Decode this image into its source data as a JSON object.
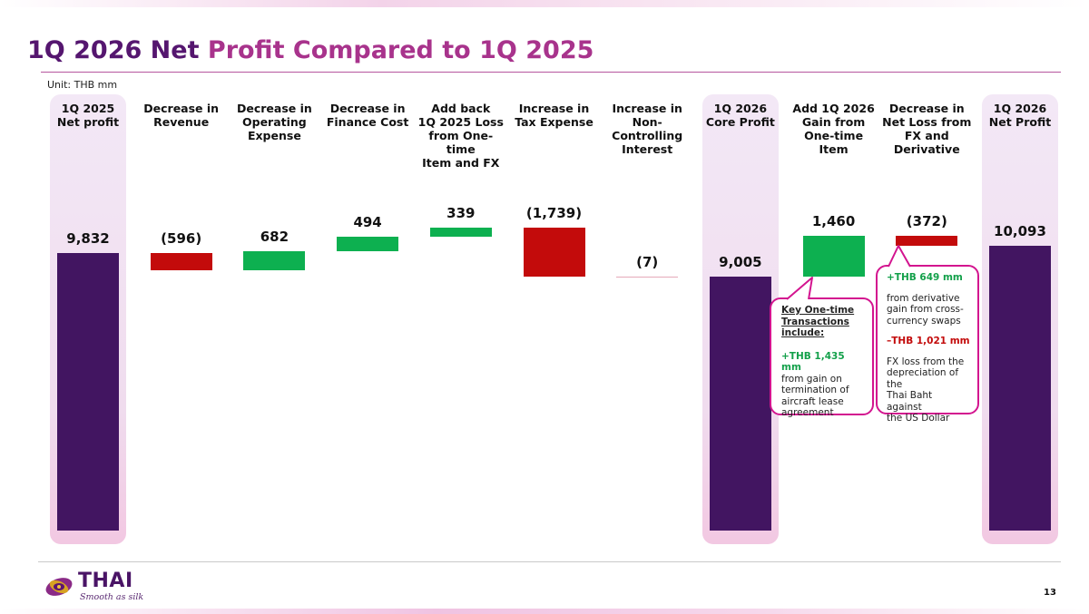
{
  "slide": {
    "title_part1": "1Q 2026 Net ",
    "title_part2": "Profit Compared to 1Q 2025",
    "unit": "Unit: THB mm",
    "page_number": "13",
    "logo_text": "THAI",
    "logo_tagline": "Smooth as silk",
    "colors": {
      "title": "#55166f",
      "total_bar": "#421561",
      "increase_bar": "#0db050",
      "decrease_bar": "#c30b0b",
      "callout_border": "#d3148f"
    }
  },
  "chart_data": {
    "type": "bar",
    "subtype": "waterfall",
    "title": "1Q 2026 Net Profit Compared to 1Q 2025",
    "unit": "Unit: THB mm",
    "steps": [
      {
        "category": [
          "1Q 2025",
          "Net profit"
        ],
        "kind": "total",
        "value": 9832,
        "label": "9,832"
      },
      {
        "category": [
          "Decrease in",
          "Revenue"
        ],
        "kind": "delta",
        "value": -596,
        "label": "(596)"
      },
      {
        "category": [
          "Decrease in",
          "Operating",
          "Expense"
        ],
        "kind": "delta",
        "value": 682,
        "label": "682"
      },
      {
        "category": [
          "Decrease in",
          "Finance Cost"
        ],
        "kind": "delta",
        "value": 494,
        "label": "494"
      },
      {
        "category": [
          "Add back",
          "1Q 2025 Loss",
          "from One-time",
          "Item and FX"
        ],
        "kind": "delta",
        "value": 339,
        "label": "339"
      },
      {
        "category": [
          "Increase in",
          "Tax Expense"
        ],
        "kind": "delta",
        "value": -1739,
        "label": "(1,739)"
      },
      {
        "category": [
          "Increase in",
          "Non-",
          "Controlling",
          "Interest"
        ],
        "kind": "delta",
        "value": -7,
        "label": "(7)"
      },
      {
        "category": [
          "1Q 2026",
          "Core Profit"
        ],
        "kind": "total",
        "value": 9005,
        "label": "9,005"
      },
      {
        "category": [
          "Add 1Q 2026",
          "Gain from",
          "One-time Item"
        ],
        "kind": "delta",
        "value": 1460,
        "label": "1,460"
      },
      {
        "category": [
          "Decrease in",
          "Net Loss from",
          "FX and",
          "Derivative"
        ],
        "kind": "delta",
        "value": -372,
        "label": "(372)"
      },
      {
        "category": [
          "1Q 2026",
          "Net Profit"
        ],
        "kind": "total",
        "value": 10093,
        "label": "10,093"
      }
    ],
    "grid": false,
    "legend": "none"
  },
  "callouts": {
    "one_time": {
      "heading_lines": [
        "Key One-time",
        "Transactions",
        "include:"
      ],
      "amount": "+THB 1,435 mm",
      "desc_lines": [
        "from gain on",
        "termination of",
        "aircraft lease",
        "agreement"
      ]
    },
    "fx": {
      "gain_amount": "+THB 649 mm",
      "gain_desc_lines": [
        "from derivative",
        "gain from cross-",
        "currency swaps"
      ],
      "loss_amount": "–THB 1,021 mm",
      "loss_desc_lines": [
        "FX loss from the",
        "depreciation of the",
        "Thai Baht against",
        "the US Dollar"
      ]
    }
  }
}
